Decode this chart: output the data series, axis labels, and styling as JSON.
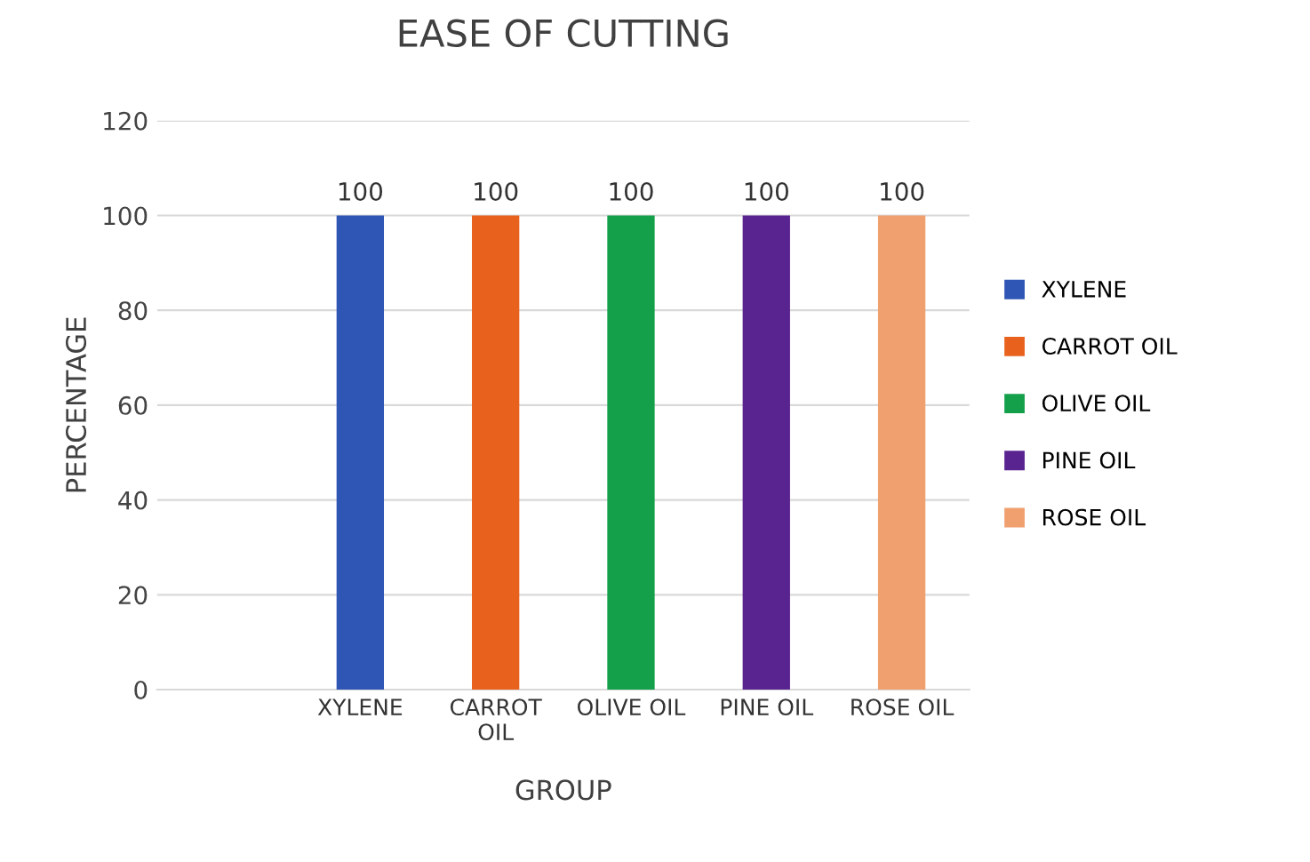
{
  "chart_data": {
    "type": "bar",
    "title": "EASE OF CUTTING",
    "xlabel": "GROUP",
    "ylabel": "PERCENTAGE",
    "categories": [
      null,
      "XYLENE",
      "CARROT\nOIL",
      "OLIVE OIL",
      "PINE OIL",
      "ROSE OIL"
    ],
    "series": [
      {
        "name": "XYLENE",
        "color": "#2f55b5",
        "values": [
          null,
          100,
          null,
          null,
          null,
          null
        ]
      },
      {
        "name": "CARROT OIL",
        "color": "#e8621e",
        "values": [
          null,
          null,
          100,
          null,
          null,
          null
        ]
      },
      {
        "name": "OLIVE OIL",
        "color": "#14a04a",
        "values": [
          null,
          null,
          null,
          100,
          null,
          null
        ]
      },
      {
        "name": "PINE OIL",
        "color": "#5a2490",
        "values": [
          null,
          null,
          null,
          null,
          100,
          null
        ]
      },
      {
        "name": "ROSE OIL",
        "color": "#f0a06e",
        "values": [
          null,
          null,
          null,
          null,
          null,
          100
        ]
      }
    ],
    "ylim": [
      0,
      120
    ],
    "yticks": [
      0,
      20,
      40,
      60,
      80,
      100,
      120
    ],
    "grid": "y",
    "legend": "right",
    "data_labels": true
  }
}
